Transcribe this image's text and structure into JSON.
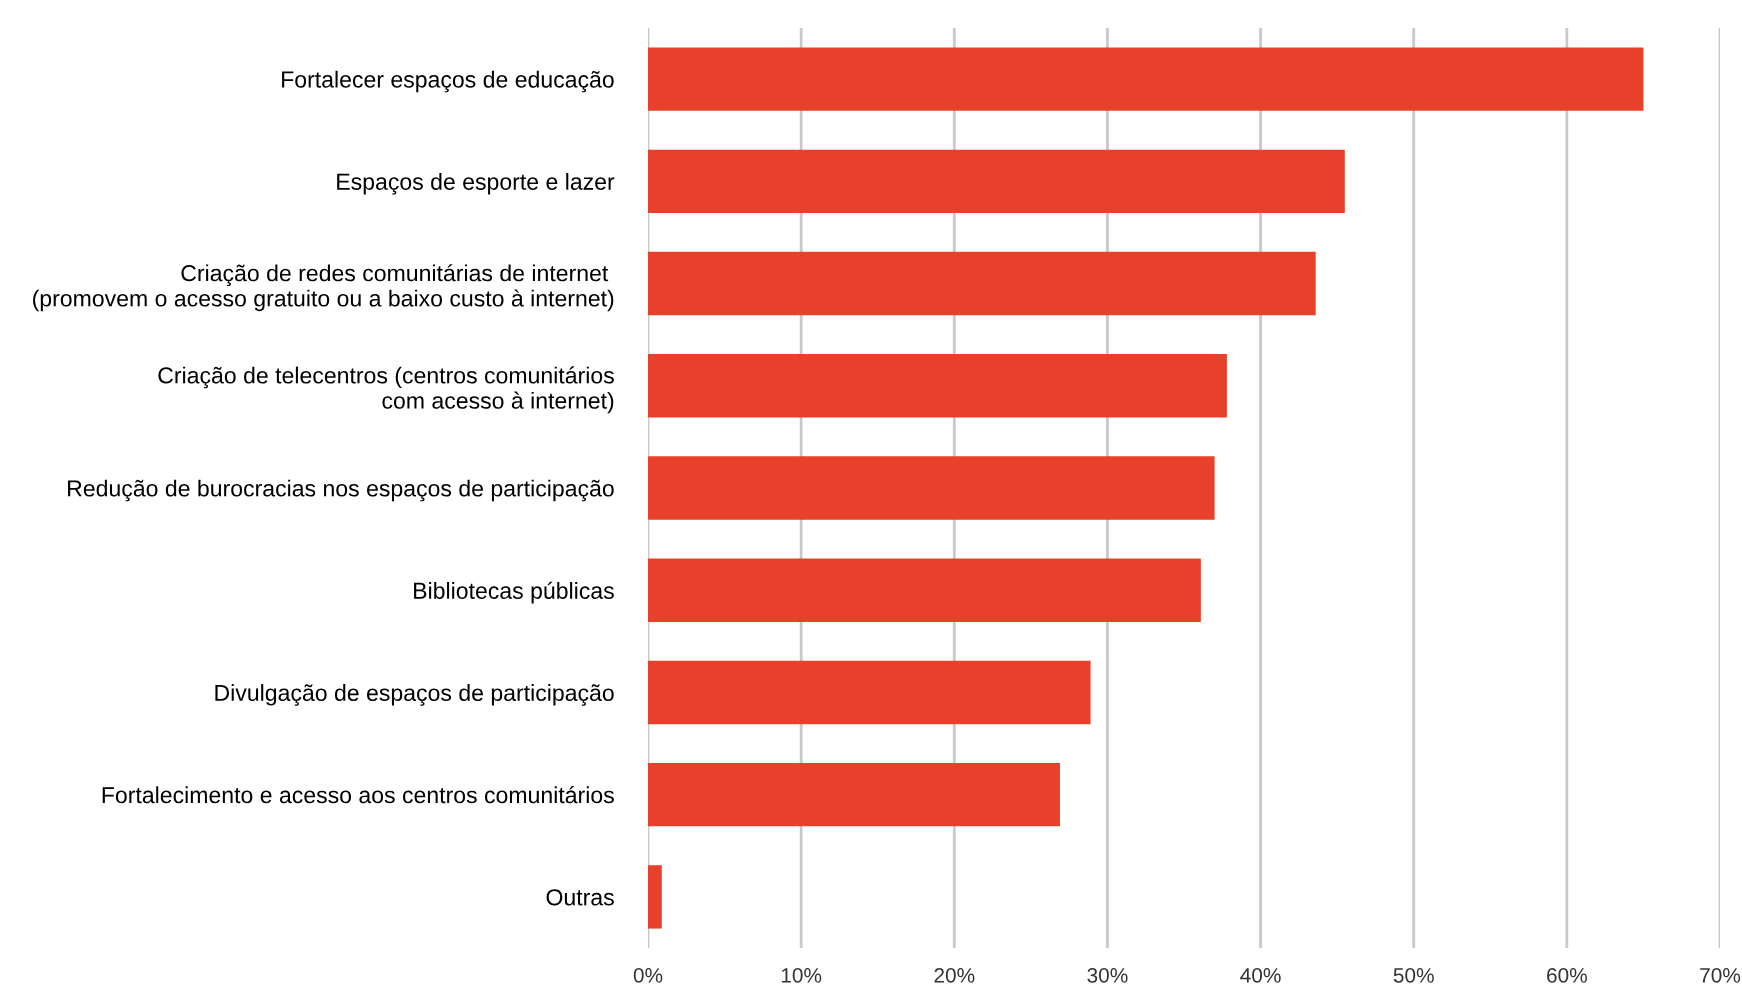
{
  "chart_data": {
    "type": "bar",
    "orientation": "horizontal",
    "categories": [
      "Fortalecer espaços de educação",
      "Espaços de esporte e lazer",
      "Criação de redes comunitárias de internet \n(promovem o acesso gratuito ou a baixo custo à internet)",
      "Criação de telecentros (centros comunitários\ncom acesso à internet)",
      "Redução de burocracias nos espaços de participação",
      "Bibliotecas públicas",
      "Divulgação de espaços de participação",
      "Fortalecimento e acesso aos centros comunitários",
      "Outras"
    ],
    "values": [
      65.0,
      45.5,
      43.6,
      37.8,
      37.0,
      36.1,
      28.9,
      26.9,
      0.9
    ],
    "color": "#e8412b",
    "xlim": [
      0,
      70
    ],
    "xticks": [
      {
        "value": 0,
        "label": "0%"
      },
      {
        "value": 10,
        "label": "10%"
      },
      {
        "value": 20,
        "label": "20%"
      },
      {
        "value": 30,
        "label": "30%"
      },
      {
        "value": 40,
        "label": "40%"
      },
      {
        "value": 50,
        "label": "50%"
      },
      {
        "value": 60,
        "label": "60%"
      },
      {
        "value": 70,
        "label": "70%"
      }
    ],
    "grid": "x"
  }
}
